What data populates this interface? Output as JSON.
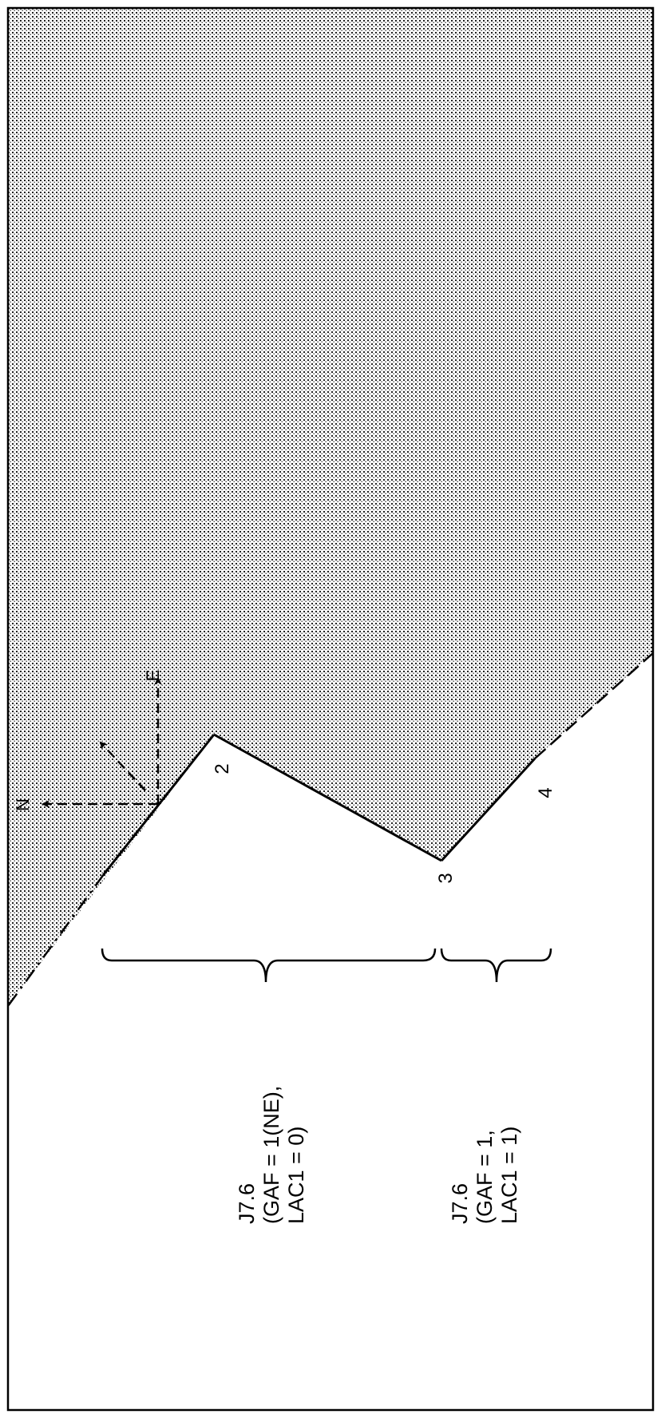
{
  "diagram": {
    "vertex_labels": [
      "2",
      "3",
      "4"
    ],
    "directions": {
      "north": "N",
      "east": "E"
    },
    "annotations": [
      {
        "lines": [
          "J7.6",
          "(GAF = 1(NE),",
          "LAC1 = 0)"
        ]
      },
      {
        "lines": [
          "J7.6",
          "(GAF = 1,",
          "LAC1 = 1)"
        ]
      }
    ]
  }
}
